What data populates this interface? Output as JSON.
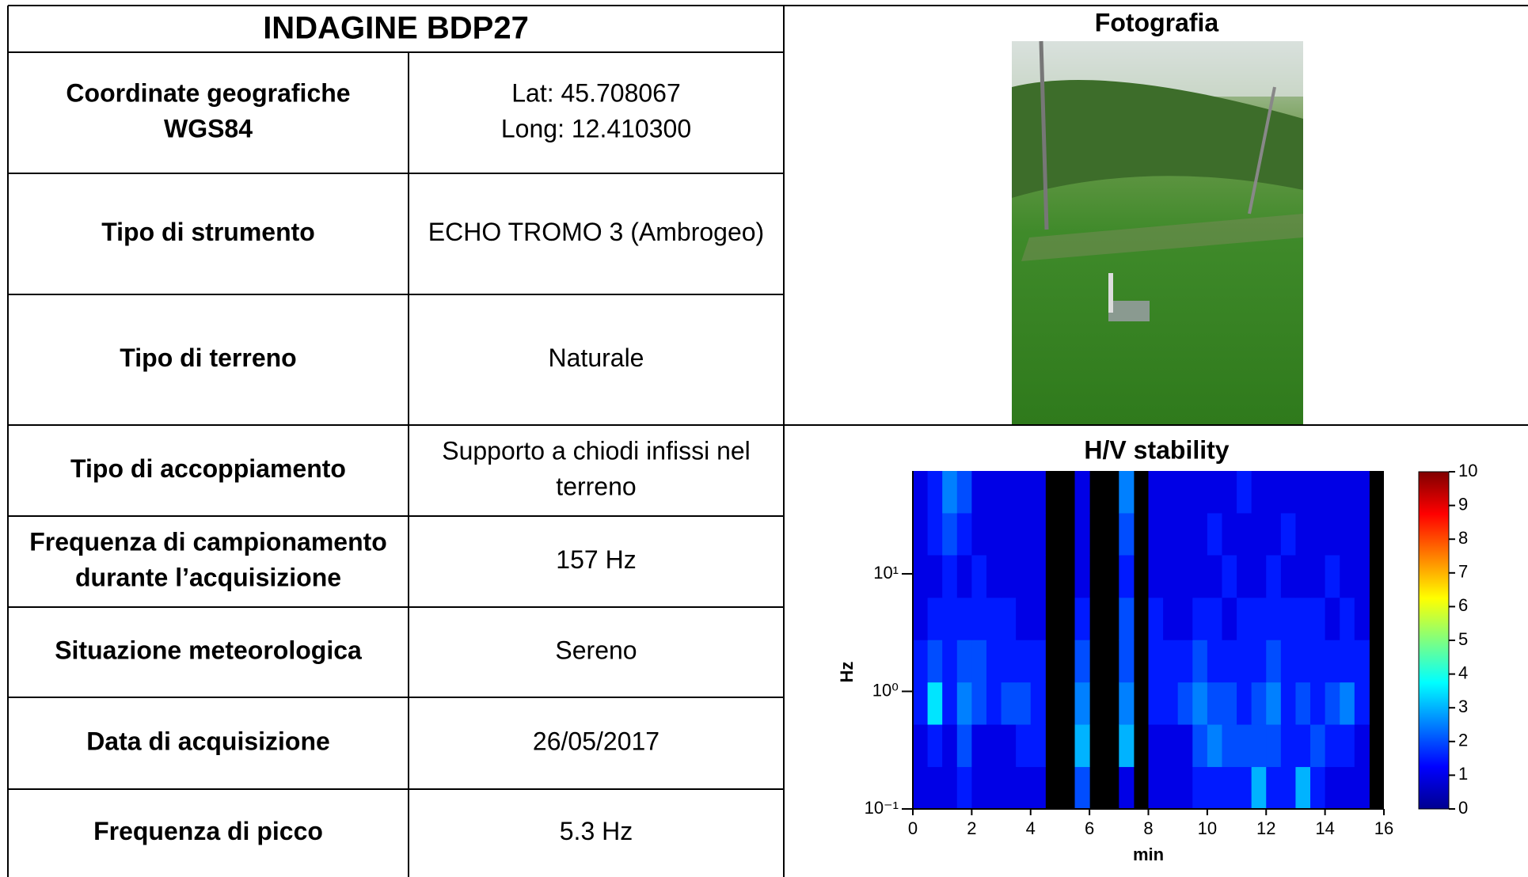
{
  "table": {
    "title": "INDAGINE BDP27",
    "rows": [
      [
        [
          "Coordinate geografiche",
          "WGS84"
        ],
        [
          "Lat: 45.708067",
          "Long: 12.410300"
        ]
      ],
      [
        [
          "Tipo di strumento"
        ],
        [
          "ECHO TROMO 3 (Ambrogeo)"
        ]
      ],
      [
        [
          "Tipo di terreno"
        ],
        [
          "Naturale"
        ]
      ],
      [
        [
          "Tipo di accoppiamento"
        ],
        [
          "Supporto a chiodi infissi nel",
          "terreno"
        ]
      ],
      [
        [
          "Frequenza di campionamento",
          "durante l’acquisizione"
        ],
        [
          "157 Hz"
        ]
      ],
      [
        [
          "Situazione meteorologica"
        ],
        [
          "Sereno"
        ]
      ],
      [
        [
          "Data di acquisizione"
        ],
        [
          "26/05/2017"
        ]
      ],
      [
        [
          "Frequenza di picco"
        ],
        [
          "5.3 Hz"
        ]
      ]
    ]
  },
  "photo": {
    "title": "Fotografia"
  },
  "chart_data": {
    "type": "heatmap",
    "title": "H/V stability",
    "xlabel": "min",
    "ylabel": "Hz",
    "xlim": [
      0,
      16
    ],
    "xticks": [
      0,
      2,
      4,
      6,
      8,
      10,
      12,
      14,
      16
    ],
    "ylim": [
      0.1,
      75
    ],
    "log_y": true,
    "yticks": [
      {
        "value": 0.1,
        "label": "10⁻¹"
      },
      {
        "value": 1,
        "label": "10⁰"
      },
      {
        "value": 10,
        "label": "10¹"
      }
    ],
    "zlim": [
      0,
      10
    ],
    "zticks": [
      0,
      1,
      2,
      3,
      4,
      5,
      6,
      7,
      8,
      9,
      10
    ],
    "colormap": "jet",
    "xbins": [
      0,
      0.5,
      1,
      1.5,
      2,
      2.5,
      3,
      3.5,
      4,
      4.5,
      5,
      5.5,
      6,
      6.5,
      7,
      7.5,
      8,
      8.5,
      9,
      9.5,
      10,
      10.5,
      11,
      11.5,
      12,
      12.5,
      13,
      13.5,
      14,
      14.5,
      15,
      15.5,
      16
    ],
    "ybins": [
      0.1,
      0.229,
      0.525,
      1.2,
      2.75,
      6.3,
      14.5,
      33,
      75
    ],
    "values": [
      [
        1,
        1,
        1,
        1.5,
        1,
        1,
        1,
        1,
        1,
        null,
        null,
        2,
        null,
        null,
        1,
        null,
        1,
        1,
        1,
        1.5,
        1.5,
        1.5,
        1.5,
        3,
        1.5,
        1.5,
        3,
        1.5,
        1,
        1,
        1,
        null
      ],
      [
        1,
        1.5,
        1,
        2,
        1,
        1,
        1,
        1.5,
        1.5,
        null,
        null,
        3,
        null,
        null,
        3,
        null,
        1,
        1,
        1,
        2,
        2.5,
        2,
        2,
        2,
        2,
        1.5,
        1.5,
        2,
        1.5,
        1.5,
        1,
        null
      ],
      [
        1.5,
        3.5,
        1.5,
        2.5,
        2,
        1.5,
        2,
        2,
        1.5,
        null,
        null,
        2.5,
        null,
        null,
        2.5,
        null,
        1.5,
        1.5,
        2,
        2.5,
        2,
        2,
        1.5,
        2,
        2.5,
        1.5,
        2,
        1.5,
        2,
        2.5,
        1.5,
        null
      ],
      [
        1.5,
        2,
        1.5,
        2,
        2,
        1.5,
        1.5,
        1.5,
        1.5,
        null,
        null,
        2,
        null,
        null,
        2,
        null,
        1.5,
        1.5,
        1.5,
        2,
        1.5,
        1.5,
        1.5,
        1.5,
        2,
        1.5,
        1.5,
        1.5,
        1.5,
        1.5,
        1.5,
        null
      ],
      [
        1,
        1.5,
        1.5,
        1.5,
        1.5,
        1.5,
        1.5,
        1,
        1,
        null,
        null,
        1.5,
        null,
        null,
        2,
        null,
        1.5,
        1,
        1,
        1.5,
        1.5,
        1,
        1.5,
        1.5,
        1.5,
        1.5,
        1.5,
        1.5,
        1,
        1.5,
        1,
        null
      ],
      [
        1,
        1,
        1.5,
        1,
        1.5,
        1,
        1,
        1,
        1,
        null,
        null,
        1,
        null,
        null,
        1.5,
        null,
        1,
        1,
        1,
        1,
        1,
        1.5,
        1,
        1,
        1.5,
        1,
        1,
        1,
        1.5,
        1,
        1,
        null
      ],
      [
        1,
        1.5,
        2,
        1.5,
        1,
        1,
        1,
        1,
        1,
        null,
        null,
        1,
        null,
        null,
        2,
        null,
        1,
        1,
        1,
        1,
        1.5,
        1,
        1,
        1,
        1,
        1.5,
        1,
        1,
        1,
        1,
        1,
        null
      ],
      [
        1,
        1.5,
        2.5,
        2,
        1,
        1,
        1,
        1,
        1,
        null,
        null,
        1,
        null,
        null,
        2.5,
        null,
        1,
        1,
        1,
        1,
        1,
        1,
        1.5,
        1,
        1,
        1,
        1,
        1,
        1,
        1,
        1,
        null
      ]
    ]
  }
}
